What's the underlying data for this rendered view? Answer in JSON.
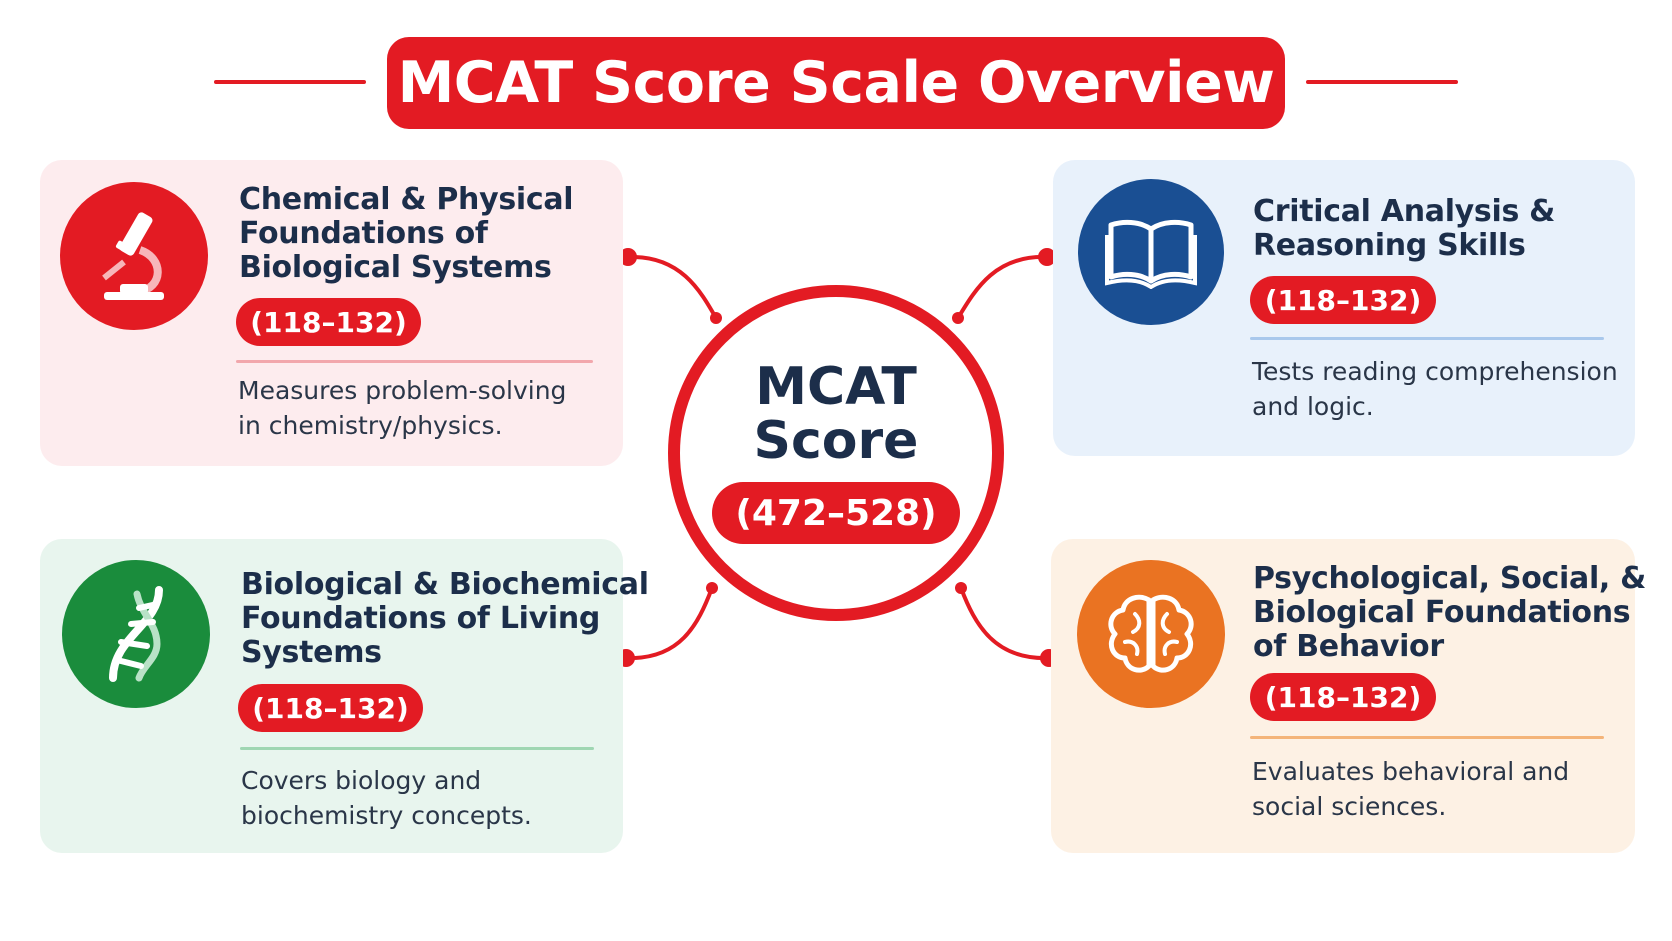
{
  "header": {
    "title": "MCAT Score Scale Overview"
  },
  "center": {
    "title_line1": "MCAT",
    "title_line2": "Score",
    "range": "(472–528)"
  },
  "sections": [
    {
      "title_lines": [
        "Chemical & Physical",
        "Foundations of",
        "Biological Systems"
      ],
      "range": "(118–132)",
      "desc_lines": [
        "Measures problem-solving",
        "in chemistry/physics."
      ],
      "icon": "microscope-icon",
      "color": "#e31b23"
    },
    {
      "title_lines": [
        "Critical Analysis &",
        "Reasoning Skills"
      ],
      "range": "(118–132)",
      "desc_lines": [
        "Tests reading comprehension",
        "and logic."
      ],
      "icon": "open-book-icon",
      "color": "#1a4f93"
    },
    {
      "title_lines": [
        "Biological & Biochemical",
        "Foundations of Living",
        "Systems"
      ],
      "range": "(118–132)",
      "desc_lines": [
        "Covers biology and",
        "biochemistry concepts."
      ],
      "icon": "dna-icon",
      "color": "#1a8c3c"
    },
    {
      "title_lines": [
        "Psychological, Social, &",
        "Biological Foundations",
        "of Behavior"
      ],
      "range": "(118–132)",
      "desc_lines": [
        "Evaluates behavioral and",
        "social sciences."
      ],
      "icon": "brain-icon",
      "color": "#ea7322"
    }
  ],
  "colors": {
    "accent": "#e31b23",
    "card_red_bg": "#fdecee",
    "card_blue_bg": "#e8f1fb",
    "card_green_bg": "#e8f5ee",
    "card_orange_bg": "#fdf1e4"
  }
}
